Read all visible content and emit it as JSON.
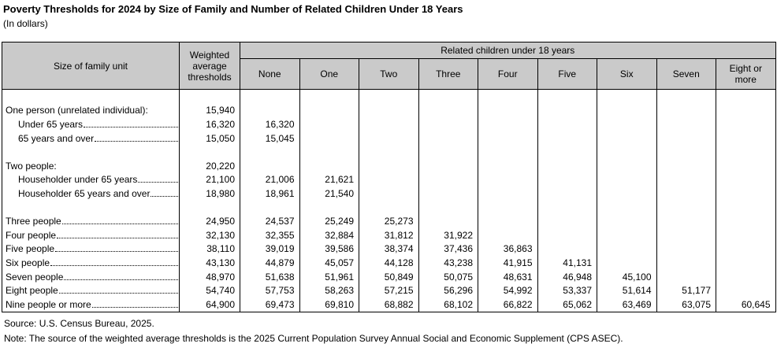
{
  "page": {
    "title": "Poverty Thresholds for 2024 by Size of Family and Number of Related Children Under 18 Years",
    "subtitle": "(In dollars)"
  },
  "table": {
    "family_col_header": "Size of family unit",
    "weighted_col_header": "Weighted average thresholds",
    "group_header": "Related children under 18 years",
    "child_columns": [
      "None",
      "One",
      "Two",
      "Three",
      "Four",
      "Five",
      "Six",
      "Seven",
      "Eight or more"
    ],
    "rows": [
      {
        "blank": true,
        "label": "",
        "indent": false,
        "leader": false,
        "values": []
      },
      {
        "label": "One person (unrelated individual):",
        "indent": false,
        "leader": false,
        "values": [
          "15,940"
        ]
      },
      {
        "label": "Under 65 years",
        "indent": true,
        "leader": true,
        "values": [
          "16,320",
          "16,320"
        ]
      },
      {
        "label": "65 years and over",
        "indent": true,
        "leader": true,
        "values": [
          "15,050",
          "15,045"
        ]
      },
      {
        "blank": true,
        "label": "",
        "indent": false,
        "leader": false,
        "values": []
      },
      {
        "label": "Two people:",
        "indent": false,
        "leader": false,
        "values": [
          "20,220"
        ]
      },
      {
        "label": "Householder under 65 years",
        "indent": true,
        "leader": true,
        "values": [
          "21,100",
          "21,006",
          "21,621"
        ]
      },
      {
        "label": "Householder 65 years and over",
        "indent": true,
        "leader": true,
        "values": [
          "18,980",
          "18,961",
          "21,540"
        ]
      },
      {
        "blank": true,
        "label": "",
        "indent": false,
        "leader": false,
        "values": []
      },
      {
        "label": "Three people",
        "indent": false,
        "leader": true,
        "values": [
          "24,950",
          "24,537",
          "25,249",
          "25,273"
        ]
      },
      {
        "label": "Four people",
        "indent": false,
        "leader": true,
        "values": [
          "32,130",
          "32,355",
          "32,884",
          "31,812",
          "31,922"
        ]
      },
      {
        "label": "Five people",
        "indent": false,
        "leader": true,
        "values": [
          "38,110",
          "39,019",
          "39,586",
          "38,374",
          "37,436",
          "36,863"
        ]
      },
      {
        "label": "Six people",
        "indent": false,
        "leader": true,
        "values": [
          "43,130",
          "44,879",
          "45,057",
          "44,128",
          "43,238",
          "41,915",
          "41,131"
        ]
      },
      {
        "label": "Seven people",
        "indent": false,
        "leader": true,
        "values": [
          "48,970",
          "51,638",
          "51,961",
          "50,849",
          "50,075",
          "48,631",
          "46,948",
          "45,100"
        ]
      },
      {
        "label": "Eight people",
        "indent": false,
        "leader": true,
        "values": [
          "54,740",
          "57,753",
          "58,263",
          "57,215",
          "56,296",
          "54,992",
          "53,337",
          "51,614",
          "51,177"
        ]
      },
      {
        "label": "Nine people or more",
        "indent": false,
        "leader": true,
        "values": [
          "64,900",
          "69,473",
          "69,810",
          "68,882",
          "68,102",
          "66,822",
          "65,062",
          "63,469",
          "63,075",
          "60,645"
        ]
      }
    ]
  },
  "footer": {
    "source": "Source: U.S. Census Bureau, 2025.",
    "note": "Note: The source of the weighted average thresholds is the 2025 Current Population Survey Annual Social and Economic Supplement (CPS ASEC)."
  },
  "colors": {
    "header_background": "#cacaca",
    "border": "#000000",
    "text": "#000000"
  }
}
